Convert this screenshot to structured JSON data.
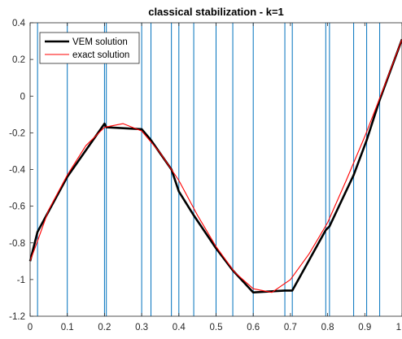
{
  "chart_data": {
    "type": "line",
    "title": "classical stabilization - k=1",
    "xlabel": "",
    "ylabel": "",
    "xlim": [
      0,
      1
    ],
    "ylim": [
      -1.2,
      0.4
    ],
    "x_ticks": [
      0,
      0.1,
      0.2,
      0.3,
      0.4,
      0.5,
      0.6,
      0.7,
      0.8,
      0.9,
      1
    ],
    "x_tick_labels": [
      "0",
      "0.1",
      "0.2",
      "0.3",
      "0.4",
      "0.5",
      "0.6",
      "0.7",
      "0.8",
      "0.9",
      "1"
    ],
    "y_ticks": [
      -1.2,
      -1,
      -0.8,
      -0.6,
      -0.4,
      -0.2,
      0,
      0.2,
      0.4
    ],
    "y_tick_labels": [
      "-1.2",
      "-1",
      "-0.8",
      "-0.6",
      "-0.4",
      "-0.2",
      "0",
      "0.2",
      "0.4"
    ],
    "grid": true,
    "legend_position": "top-left",
    "mesh_nodes": [
      0.02,
      0.1,
      0.2,
      0.205,
      0.3,
      0.325,
      0.38,
      0.4,
      0.44,
      0.5,
      0.545,
      0.6,
      0.685,
      0.705,
      0.795,
      0.805,
      0.87,
      0.905,
      0.94
    ],
    "series": [
      {
        "name": "VEM solution",
        "color": "#000000",
        "x": [
          0,
          0.02,
          0.1,
          0.2,
          0.205,
          0.3,
          0.325,
          0.38,
          0.4,
          0.44,
          0.5,
          0.545,
          0.6,
          0.685,
          0.705,
          0.795,
          0.805,
          0.87,
          0.905,
          0.94,
          1
        ],
        "y": [
          -0.9,
          -0.74,
          -0.44,
          -0.15,
          -0.17,
          -0.18,
          -0.24,
          -0.4,
          -0.52,
          -0.65,
          -0.83,
          -0.95,
          -1.07,
          -1.06,
          -1.06,
          -0.73,
          -0.71,
          -0.43,
          -0.24,
          -0.02,
          0.31
        ]
      },
      {
        "name": "exact solution",
        "color": "#ff0000",
        "x": [
          0,
          0.02,
          0.05,
          0.1,
          0.15,
          0.2,
          0.25,
          0.3,
          0.35,
          0.4,
          0.45,
          0.5,
          0.55,
          0.6,
          0.65,
          0.7,
          0.75,
          0.8,
          0.85,
          0.9,
          0.95,
          1
        ],
        "y": [
          -0.9,
          -0.79,
          -0.62,
          -0.43,
          -0.27,
          -0.17,
          -0.15,
          -0.19,
          -0.31,
          -0.46,
          -0.65,
          -0.82,
          -0.96,
          -1.05,
          -1.07,
          -1.0,
          -0.86,
          -0.69,
          -0.46,
          -0.22,
          0.04,
          0.31
        ]
      }
    ]
  }
}
